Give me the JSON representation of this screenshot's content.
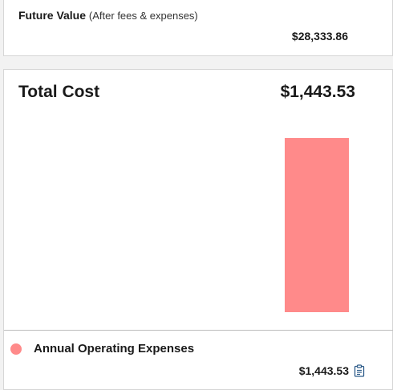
{
  "future_value": {
    "title": "Future Value",
    "subtitle": "(After fees & expenses)",
    "amount": "$28,333.86"
  },
  "total_cost": {
    "label": "Total Cost",
    "amount": "$1,443.53"
  },
  "chart_data": {
    "type": "bar",
    "categories": [
      "Annual Operating Expenses"
    ],
    "series": [
      {
        "name": "Annual Operating Expenses",
        "values": [
          1443.53
        ],
        "color": "#ff8a8a"
      }
    ],
    "ylim": [
      0,
      1600
    ]
  },
  "legend": {
    "items": [
      {
        "label": "Annual Operating Expenses",
        "amount": "$1,443.53",
        "color": "#ff8a8a",
        "icon": "clipboard-icon"
      }
    ]
  }
}
